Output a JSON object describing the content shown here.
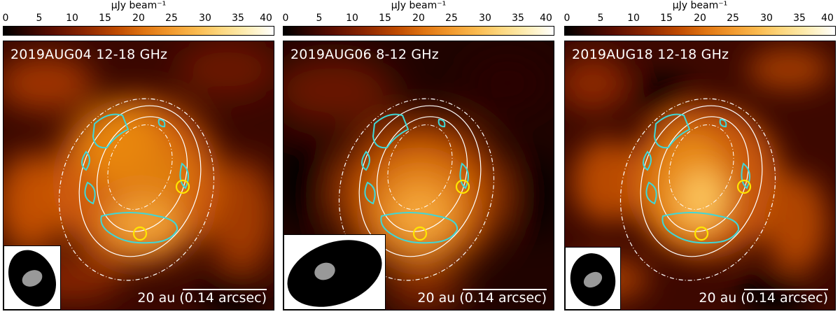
{
  "colorbar": {
    "label": "μJy beam⁻¹",
    "ticks": [
      "0",
      "5",
      "10",
      "15",
      "20",
      "25",
      "30",
      "35",
      "40"
    ],
    "range": [
      0,
      40
    ]
  },
  "panels": [
    {
      "title": "2019AUG04 12-18 GHz",
      "scale_label": "20 au (0.14 arcsec)",
      "beam": "medium"
    },
    {
      "title": "2019AUG06 8-12 GHz",
      "scale_label": "20 au (0.14 arcsec)",
      "beam": "large"
    },
    {
      "title": "2019AUG18 12-18 GHz",
      "scale_label": "20 au (0.14 arcsec)",
      "beam": "small"
    }
  ],
  "colors": {
    "contour_cyan": "#3fd8d8",
    "contour_white": "#ffffff",
    "marker_yellow": "#ffe600"
  }
}
